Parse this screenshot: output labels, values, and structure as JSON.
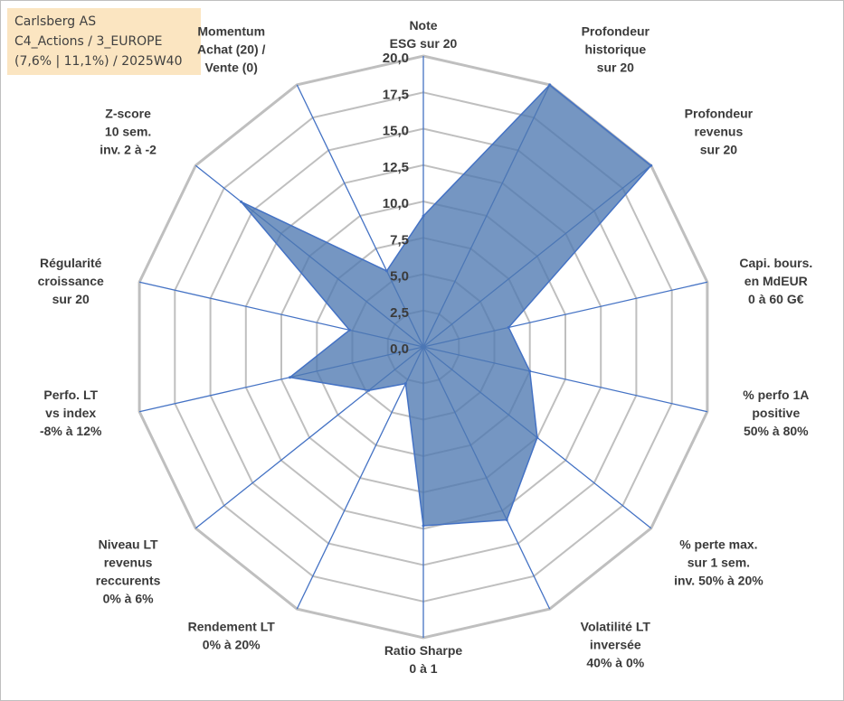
{
  "info_box": {
    "line1": "Carlsberg AS",
    "line2": "C4_Actions / 3_EUROPE",
    "line3": "(7,6% | 11,1%) / 2025W40"
  },
  "colors": {
    "fill": "#4e79b1",
    "outline": "#4472c4",
    "grid": "#bfbfbf",
    "spoke": "#4472c4",
    "info_bg": "#fbe5c1"
  },
  "chart_data": {
    "type": "radar",
    "title": "",
    "rlim": [
      0,
      20
    ],
    "grid": true,
    "tick_labels": [
      "0,0",
      "2,5",
      "5,0",
      "7,5",
      "10,0",
      "12,5",
      "15,0",
      "17,5",
      "20,0"
    ],
    "categories": [
      "Note|ESG sur 20",
      "Profondeur|historique|sur 20",
      "Profondeur|revenus|sur 20",
      "Capi. bours.|en MdEUR|0 à 60 G€",
      "% perfo 1A|positive|50% à 80%",
      "% perte max.|sur 1 sem.|inv. 50% à 20%",
      "Volatilité LT|inversée|40% à 0%",
      "Ratio Sharpe|0 à 1",
      "Rendement LT|0% à 20%",
      "Niveau LT|revenus|reccurents|0% à 6%",
      "Perfo. LT|vs index|-8% à 12%",
      "Régularité|croissance|sur 20",
      "Z-score|10 sem.|inv. 2 à -2",
      "Momentum|Achat (20) /|Vente (0)"
    ],
    "series": [
      {
        "values": [
          9.0,
          20.0,
          20.0,
          6.0,
          7.5,
          10.0,
          13.2,
          12.3,
          2.8,
          4.8,
          9.4,
          5.2,
          16.0,
          5.8
        ]
      }
    ]
  }
}
